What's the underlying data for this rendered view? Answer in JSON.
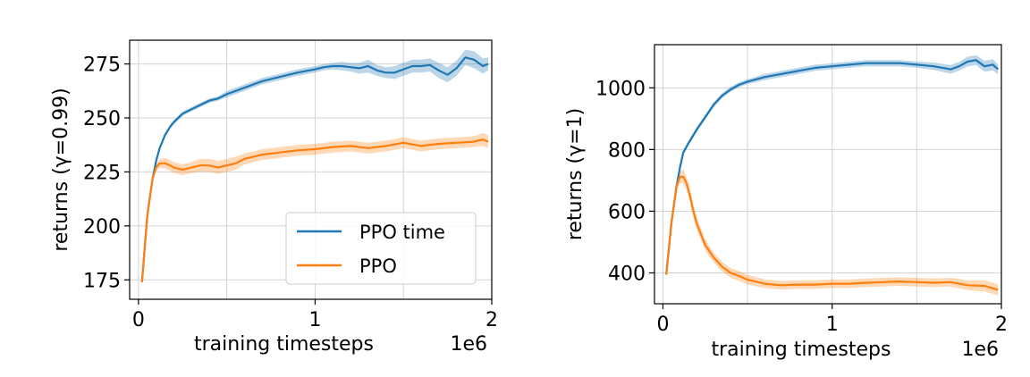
{
  "chart_data": [
    {
      "type": "line",
      "xlabel": "training timesteps",
      "ylabel": "returns (γ=0.99)",
      "x_offset_label": "1e6",
      "xlim": [
        -0.05,
        2.0
      ],
      "ylim": [
        166,
        286
      ],
      "x_ticks": [
        {
          "value": 0,
          "label": "0"
        },
        {
          "value": 1,
          "label": "1"
        },
        {
          "value": 2,
          "label": "2"
        }
      ],
      "y_ticks": [
        {
          "value": 175,
          "label": "175"
        },
        {
          "value": 200,
          "label": "200"
        },
        {
          "value": 225,
          "label": "225"
        },
        {
          "value": 250,
          "label": "250"
        },
        {
          "value": 275,
          "label": "275"
        }
      ],
      "grid": true,
      "legend": {
        "position": "lower-right"
      },
      "series": [
        {
          "name": "PPO time",
          "color": "#1f77b4",
          "x": [
            0.02,
            0.05,
            0.08,
            0.1,
            0.12,
            0.15,
            0.18,
            0.2,
            0.25,
            0.3,
            0.35,
            0.4,
            0.45,
            0.5,
            0.6,
            0.7,
            0.8,
            0.9,
            1.0,
            1.05,
            1.1,
            1.15,
            1.2,
            1.25,
            1.3,
            1.35,
            1.4,
            1.45,
            1.5,
            1.55,
            1.6,
            1.65,
            1.7,
            1.75,
            1.8,
            1.85,
            1.9,
            1.95,
            1.98
          ],
          "values": [
            174,
            205,
            222,
            230,
            236,
            242,
            246,
            248,
            252,
            254,
            256,
            258,
            259,
            261,
            264,
            267,
            269,
            271,
            272.5,
            273.5,
            274,
            274,
            273.5,
            273,
            274,
            272,
            271,
            271,
            272.5,
            274,
            274,
            274.5,
            272,
            270,
            273,
            278,
            277,
            274,
            275
          ],
          "band": [
            1,
            1,
            1,
            1,
            1,
            1,
            1,
            1,
            1,
            1,
            1,
            1,
            1,
            1.5,
            1.5,
            1.5,
            1.5,
            1.5,
            1.5,
            1.5,
            1.5,
            2,
            2,
            2.5,
            3,
            2.5,
            2.5,
            3,
            3,
            3,
            3,
            3,
            3.5,
            3.5,
            3.5,
            3.5,
            4,
            3.5,
            3
          ]
        },
        {
          "name": "PPO",
          "color": "#ff7f0e",
          "x": [
            0.02,
            0.05,
            0.08,
            0.1,
            0.12,
            0.15,
            0.18,
            0.2,
            0.25,
            0.3,
            0.35,
            0.4,
            0.45,
            0.5,
            0.55,
            0.6,
            0.7,
            0.8,
            0.9,
            1.0,
            1.1,
            1.2,
            1.3,
            1.4,
            1.5,
            1.6,
            1.7,
            1.8,
            1.9,
            1.95,
            1.98
          ],
          "values": [
            174,
            205,
            222,
            227,
            229,
            229,
            228,
            227,
            226,
            227,
            228,
            228,
            227,
            228,
            229,
            231,
            233,
            234,
            235,
            235.5,
            236.5,
            237,
            236,
            237,
            238.5,
            237,
            238,
            238.5,
            239,
            240,
            239
          ],
          "band": [
            1,
            1,
            1,
            1.5,
            2,
            2.5,
            2.5,
            2.5,
            2.5,
            2.5,
            3,
            3,
            3,
            3,
            3,
            2.5,
            2.5,
            2.5,
            2.5,
            2.5,
            2.5,
            2.5,
            2.5,
            2.5,
            2.5,
            2.5,
            2.5,
            2.5,
            2.5,
            3,
            3
          ]
        }
      ]
    },
    {
      "type": "line",
      "xlabel": "training timesteps",
      "ylabel": "returns (γ=1)",
      "x_offset_label": "1e6",
      "xlim": [
        -0.05,
        2.0
      ],
      "ylim": [
        300,
        1140
      ],
      "x_ticks": [
        {
          "value": 0,
          "label": "0"
        },
        {
          "value": 1,
          "label": "1"
        },
        {
          "value": 2,
          "label": "2"
        }
      ],
      "y_ticks": [
        {
          "value": 400,
          "label": "400"
        },
        {
          "value": 600,
          "label": "600"
        },
        {
          "value": 800,
          "label": "800"
        },
        {
          "value": 1000,
          "label": "1000"
        }
      ],
      "grid": true,
      "series": [
        {
          "name": "PPO time",
          "color": "#1f77b4",
          "x": [
            0.02,
            0.05,
            0.08,
            0.1,
            0.12,
            0.15,
            0.2,
            0.25,
            0.3,
            0.35,
            0.4,
            0.45,
            0.5,
            0.6,
            0.7,
            0.8,
            0.9,
            1.0,
            1.1,
            1.2,
            1.3,
            1.4,
            1.5,
            1.6,
            1.7,
            1.75,
            1.8,
            1.85,
            1.9,
            1.95,
            1.98
          ],
          "values": [
            395,
            560,
            680,
            740,
            790,
            820,
            865,
            905,
            945,
            975,
            995,
            1010,
            1020,
            1035,
            1045,
            1055,
            1065,
            1070,
            1075,
            1080,
            1080,
            1080,
            1075,
            1070,
            1060,
            1070,
            1085,
            1090,
            1070,
            1075,
            1060
          ],
          "band": [
            8,
            8,
            8,
            8,
            8,
            8,
            8,
            8,
            8,
            8,
            8,
            8,
            8,
            10,
            10,
            10,
            10,
            10,
            10,
            10,
            10,
            10,
            10,
            12,
            14,
            14,
            16,
            16,
            18,
            18,
            16
          ]
        },
        {
          "name": "PPO",
          "color": "#ff7f0e",
          "x": [
            0.02,
            0.05,
            0.08,
            0.1,
            0.12,
            0.14,
            0.16,
            0.18,
            0.2,
            0.25,
            0.3,
            0.35,
            0.4,
            0.45,
            0.5,
            0.6,
            0.7,
            0.8,
            0.9,
            1.0,
            1.1,
            1.2,
            1.3,
            1.4,
            1.5,
            1.6,
            1.7,
            1.8,
            1.9,
            1.95,
            1.98
          ],
          "values": [
            395,
            560,
            680,
            712,
            712,
            690,
            650,
            600,
            560,
            490,
            450,
            420,
            400,
            390,
            378,
            365,
            360,
            362,
            362,
            365,
            365,
            368,
            370,
            372,
            370,
            368,
            370,
            360,
            358,
            350,
            345
          ],
          "band": [
            8,
            10,
            14,
            20,
            22,
            22,
            22,
            20,
            20,
            18,
            16,
            16,
            16,
            16,
            16,
            14,
            14,
            14,
            14,
            14,
            14,
            14,
            14,
            14,
            14,
            14,
            14,
            16,
            18,
            18,
            18
          ]
        }
      ]
    }
  ]
}
